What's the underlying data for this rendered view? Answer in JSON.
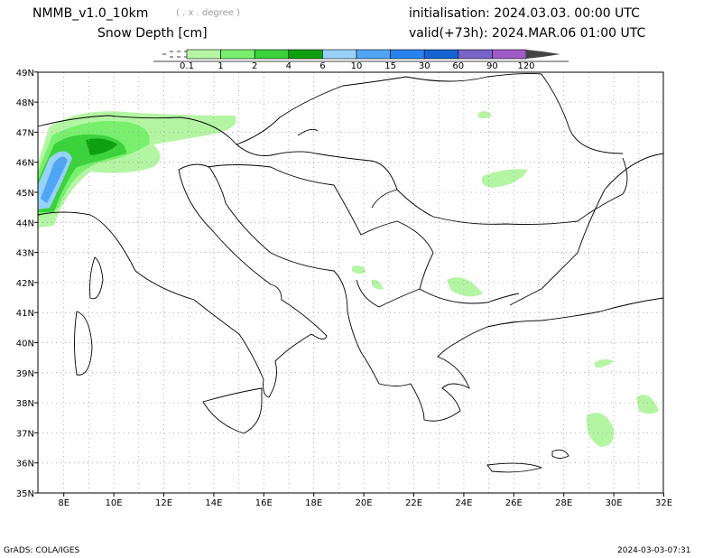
{
  "header": {
    "model": "NMMB_v1.0_10km",
    "resolution_note": "( . x . degree )",
    "variable": "Snow Depth [cm]",
    "init": "initialisation: 2024.03.03.   00:00 UTC",
    "valid": "valid(+73h): 2024.MAR.06 01:00 UTC"
  },
  "colorbar": {
    "labels": [
      "0.1",
      "1",
      "2",
      "4",
      "6",
      "10",
      "15",
      "30",
      "60",
      "90",
      "120"
    ],
    "colors": [
      "#b4f5a4",
      "#78f06e",
      "#3cd23c",
      "#0fa00f",
      "#96d2fa",
      "#50a5f5",
      "#2882f0",
      "#1464d2",
      "#7864c8",
      "#a05ac8"
    ],
    "overflow_color": "#444444"
  },
  "axes": {
    "lat_labels": [
      "35N",
      "36N",
      "37N",
      "38N",
      "39N",
      "40N",
      "41N",
      "42N",
      "43N",
      "44N",
      "45N",
      "46N",
      "47N",
      "48N",
      "49N"
    ],
    "lon_labels": [
      "8E",
      "10E",
      "12E",
      "14E",
      "16E",
      "18E",
      "20E",
      "22E",
      "24E",
      "26E",
      "28E",
      "30E",
      "32E"
    ]
  },
  "footer": {
    "left": "GrADS: COLA/IGES",
    "right": "2024-03-03-07:31"
  }
}
